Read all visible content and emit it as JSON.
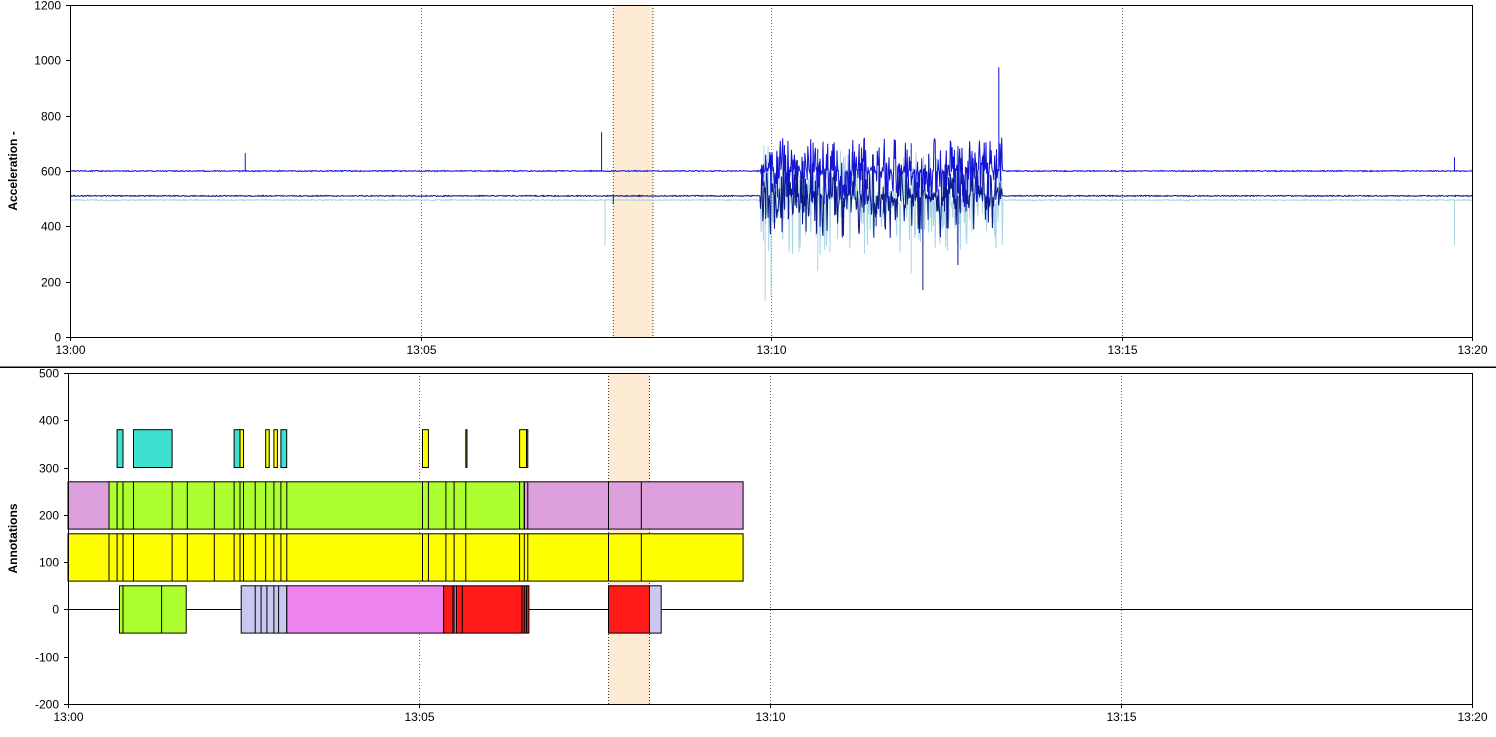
{
  "chart_data": [
    {
      "type": "line",
      "ylabel": "Acceleration -",
      "xlabel": "",
      "ylim": [
        0,
        1200
      ],
      "yticks": [
        "0",
        "200",
        "400",
        "600",
        "800",
        "1000",
        "1200"
      ],
      "xlim_minutes": [
        0,
        20
      ],
      "xticks": [
        "13:00",
        "13:05",
        "13:10",
        "13:15",
        "13:20"
      ],
      "grid": "vertical dotted at x ticks",
      "highlight_span": [
        "13:07:45",
        "13:08:19"
      ],
      "colors": {
        "highlight": "#fdebd3"
      },
      "series": [
        {
          "color": "#1414d8",
          "baseline": 600,
          "x": [
            "13:00",
            "13:02:29",
            "13:02:30",
            "13:02:31",
            "13:05:00",
            "13:07:32",
            "13:07:35",
            "13:07:38",
            "13:07:42",
            "13:09:52",
            "13:10:00",
            "13:10:40",
            "13:11:20",
            "13:12:00",
            "13:12:40",
            "13:13:15",
            "13:13:30",
            "13:17:40",
            "13:19:45",
            "13:20"
          ],
          "y": [
            598,
            598,
            665,
            598,
            598,
            598,
            740,
            600,
            598,
            600,
            660,
            680,
            720,
            700,
            690,
            975,
            600,
            600,
            650,
            600
          ]
        },
        {
          "color": "#0a1a8a",
          "baseline": 510,
          "x": [
            "13:00",
            "13:02:30",
            "13:03:00",
            "13:05:00",
            "13:07:30",
            "13:07:45",
            "13:08:00",
            "13:09:50",
            "13:10:30",
            "13:11:30",
            "13:12:10",
            "13:12:40",
            "13:13:00",
            "13:13:30",
            "13:15:00",
            "13:17:45",
            "13:18:30",
            "13:19:30",
            "13:20"
          ],
          "y": [
            510,
            515,
            505,
            515,
            500,
            480,
            515,
            510,
            430,
            400,
            170,
            260,
            500,
            520,
            510,
            505,
            495,
            520,
            520
          ]
        },
        {
          "color": "#a8d4e4",
          "baseline": 495,
          "x": [
            "13:00",
            "13:02:30",
            "13:05:00",
            "13:07:38",
            "13:07:50",
            "13:09:50",
            "13:09:55",
            "13:10:00",
            "13:10:40",
            "13:11:20",
            "13:12:00",
            "13:12:40",
            "13:13:20",
            "13:15:00",
            "13:17:40",
            "13:19:45",
            "13:20"
          ],
          "y": [
            495,
            490,
            495,
            330,
            495,
            495,
            130,
            150,
            240,
            300,
            230,
            260,
            485,
            490,
            485,
            330,
            490
          ]
        }
      ]
    },
    {
      "type": "bar",
      "ylabel": "Annotations",
      "xlabel": "",
      "ylim": [
        -200,
        500
      ],
      "yticks": [
        "-200",
        "-100",
        "0",
        "100",
        "200",
        "300",
        "400",
        "500"
      ],
      "xticks": [
        "13:00",
        "13:05",
        "13:10",
        "13:15",
        "13:20"
      ],
      "grid": "vertical dotted at x ticks",
      "highlight_span": [
        "13:07:42",
        "13:08:17"
      ],
      "colors": {
        "highlight": "#fdebd3",
        "cyan": "#40e0d0",
        "yellow": "#ffff00",
        "green": "#adff2f",
        "plum": "#dda0dd",
        "violet": "#ee82ee",
        "lavender": "#c8c8f0",
        "red": "#ff1a1a"
      },
      "rows": [
        {
          "y_range": [
            300,
            380
          ],
          "segments": [
            {
              "start": "13:00:42",
              "end": "13:00:47",
              "color": "cyan"
            },
            {
              "start": "13:00:56",
              "end": "13:01:29",
              "color": "cyan"
            },
            {
              "start": "13:02:22",
              "end": "13:02:27",
              "color": "cyan"
            },
            {
              "start": "13:02:27",
              "end": "13:02:30",
              "color": "yellow"
            },
            {
              "start": "13:02:49",
              "end": "13:02:52",
              "color": "yellow"
            },
            {
              "start": "13:02:56",
              "end": "13:02:59",
              "color": "yellow"
            },
            {
              "start": "13:03:02",
              "end": "13:03:07",
              "color": "cyan"
            },
            {
              "start": "13:05:03",
              "end": "13:05:08",
              "color": "yellow"
            },
            {
              "start": "13:05:40",
              "end": "13:05:41",
              "color": "yellow"
            },
            {
              "start": "13:06:26",
              "end": "13:06:32",
              "color": "yellow"
            },
            {
              "start": "13:06:32",
              "end": "13:06:33",
              "color": "yellow"
            }
          ]
        },
        {
          "y_range": [
            170,
            270
          ],
          "segments": [
            {
              "start": "13:00:00",
              "end": "13:00:35",
              "color": "plum"
            },
            {
              "start": "13:00:35",
              "end": "13:06:30",
              "color": "green"
            },
            {
              "start": "13:06:30",
              "end": "13:09:37",
              "color": "plum"
            }
          ],
          "dividers": [
            "13:00:42",
            "13:00:47",
            "13:00:56",
            "13:01:29",
            "13:01:42",
            "13:02:05",
            "13:02:22",
            "13:02:27",
            "13:02:30",
            "13:02:40",
            "13:02:49",
            "13:02:56",
            "13:03:02",
            "13:03:07",
            "13:05:03",
            "13:05:08",
            "13:05:23",
            "13:05:30",
            "13:05:40",
            "13:06:26",
            "13:06:30",
            "13:06:33",
            "13:07:42",
            "13:08:10"
          ]
        },
        {
          "y_range": [
            60,
            160
          ],
          "segments": [
            {
              "start": "13:00:00",
              "end": "13:09:37",
              "color": "yellow"
            }
          ],
          "dividers": [
            "13:00:35",
            "13:00:42",
            "13:00:47",
            "13:00:56",
            "13:01:29",
            "13:01:42",
            "13:02:05",
            "13:02:22",
            "13:02:27",
            "13:02:30",
            "13:02:40",
            "13:02:49",
            "13:02:56",
            "13:03:02",
            "13:03:07",
            "13:05:03",
            "13:05:08",
            "13:05:23",
            "13:05:30",
            "13:05:40",
            "13:06:26",
            "13:06:30",
            "13:06:33",
            "13:07:42",
            "13:08:10"
          ]
        },
        {
          "y_range": [
            -50,
            50
          ],
          "segments": [
            {
              "start": "13:00:44",
              "end": "13:00:47",
              "color": "green"
            },
            {
              "start": "13:00:47",
              "end": "13:01:41",
              "color": "green"
            },
            {
              "start": "13:02:28",
              "end": "13:03:07",
              "color": "lavender"
            },
            {
              "start": "13:03:07",
              "end": "13:05:21",
              "color": "violet"
            },
            {
              "start": "13:05:21",
              "end": "13:05:29",
              "color": "red"
            },
            {
              "start": "13:05:29",
              "end": "13:05:32",
              "color": "violet"
            },
            {
              "start": "13:05:32",
              "end": "13:06:32",
              "color": "red"
            },
            {
              "start": "13:06:32",
              "end": "13:06:34",
              "color": "red"
            },
            {
              "start": "13:07:42",
              "end": "13:08:17",
              "color": "red"
            },
            {
              "start": "13:08:17",
              "end": "13:08:27",
              "color": "lavender"
            }
          ],
          "dividers": [
            "13:01:20",
            "13:02:40",
            "13:02:45",
            "13:02:50",
            "13:02:56",
            "13:03:00",
            "13:05:30",
            "13:05:37",
            "13:06:28",
            "13:06:30"
          ]
        }
      ]
    }
  ]
}
